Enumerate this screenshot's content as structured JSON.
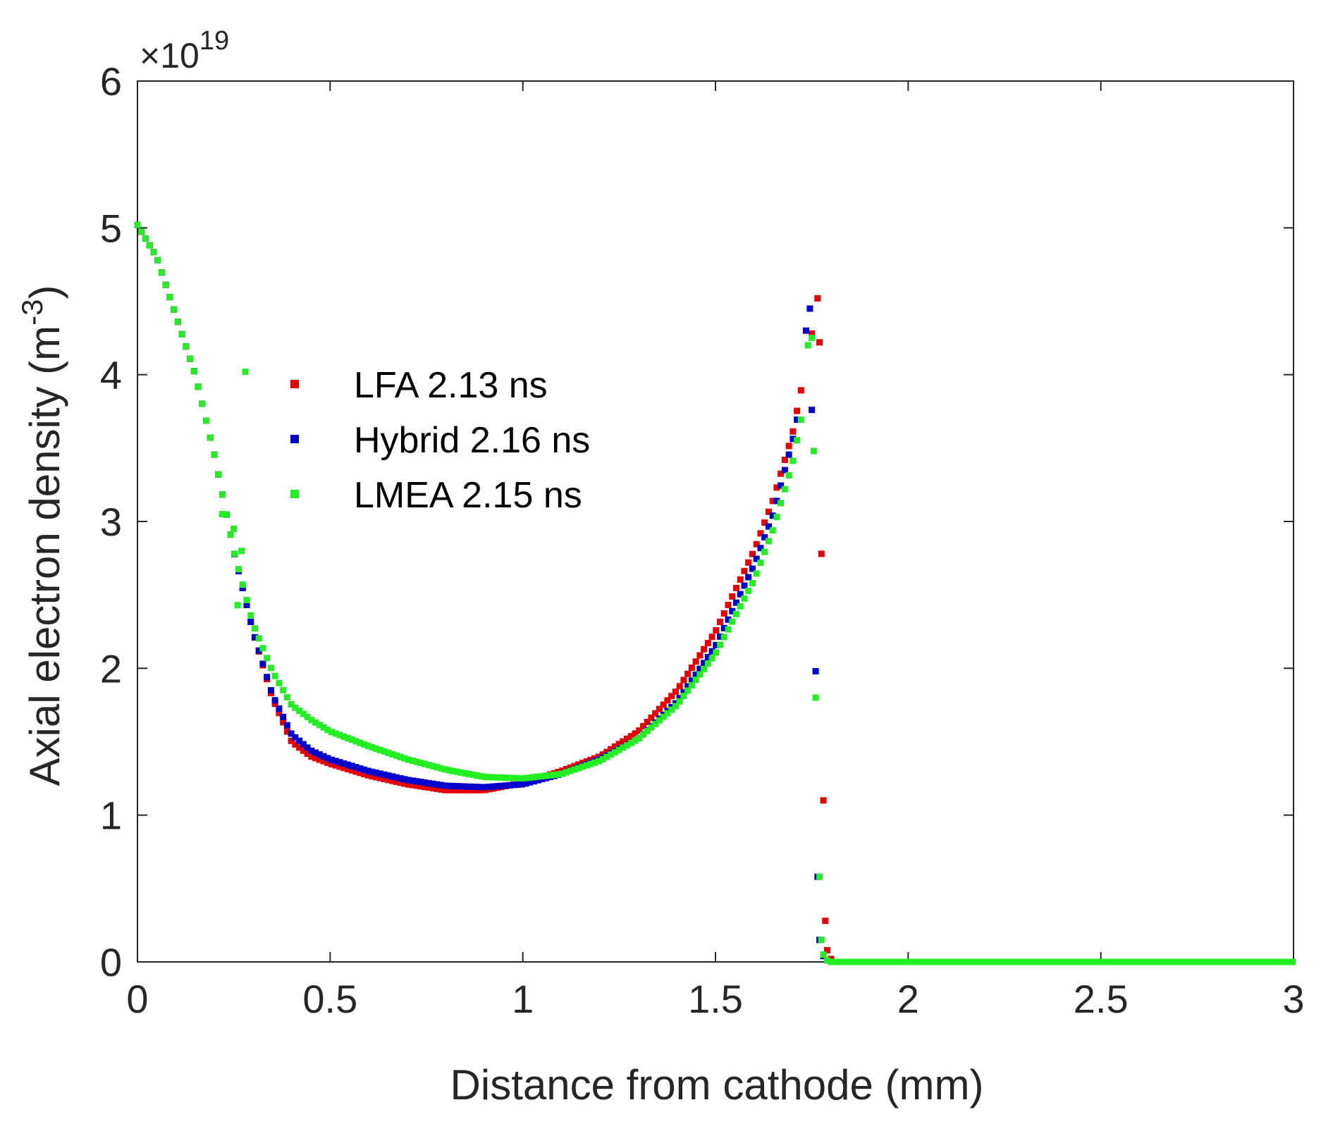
{
  "chart_data": {
    "type": "scatter",
    "title": "",
    "xlabel": "Distance from cathode (mm)",
    "ylabel_main": "Axial electron density (m",
    "ylabel_sup": "-3",
    "ylabel_close": ")",
    "y_multiplier": {
      "base": "×10",
      "exponent": "19"
    },
    "xlim": [
      0,
      3
    ],
    "ylim": [
      0,
      6
    ],
    "xticks": [
      0,
      0.5,
      1,
      1.5,
      2,
      2.5,
      3
    ],
    "xtick_labels": [
      "0",
      "0.5",
      "1",
      "1.5",
      "2",
      "2.5",
      "3"
    ],
    "yticks": [
      0,
      1,
      2,
      3,
      4,
      5,
      6
    ],
    "ytick_labels": [
      "0",
      "1",
      "2",
      "3",
      "4",
      "5",
      "6"
    ],
    "grid": false,
    "legend_position": "upper-left-inside",
    "series": [
      {
        "name": "LFA 2.13 ns",
        "color": "#e60000",
        "key": [
          [
            0,
            5.02
          ],
          [
            0.05,
            4.8
          ],
          [
            0.1,
            4.4
          ],
          [
            0.15,
            4.0
          ],
          [
            0.2,
            3.45
          ],
          [
            0.25,
            2.8
          ],
          [
            0.3,
            2.25
          ],
          [
            0.35,
            1.8
          ],
          [
            0.4,
            1.5
          ],
          [
            0.45,
            1.4
          ],
          [
            0.5,
            1.35
          ],
          [
            0.6,
            1.27
          ],
          [
            0.7,
            1.21
          ],
          [
            0.8,
            1.17
          ],
          [
            0.9,
            1.17
          ],
          [
            1.0,
            1.22
          ],
          [
            1.1,
            1.3
          ],
          [
            1.2,
            1.4
          ],
          [
            1.3,
            1.57
          ],
          [
            1.4,
            1.85
          ],
          [
            1.5,
            2.25
          ],
          [
            1.6,
            2.8
          ],
          [
            1.65,
            3.15
          ],
          [
            1.7,
            3.6
          ],
          [
            1.73,
            4.0
          ]
        ],
        "extra": [
          [
            1.75,
            4.28
          ],
          [
            1.765,
            4.52
          ],
          [
            1.77,
            4.22
          ],
          [
            1.775,
            2.78
          ],
          [
            1.78,
            1.1
          ],
          [
            1.785,
            0.28
          ],
          [
            1.79,
            0.08
          ],
          [
            1.8,
            0.02
          ],
          [
            1.81,
            0.0
          ]
        ]
      },
      {
        "name": "Hybrid 2.16 ns",
        "color": "#0000cc",
        "key": [
          [
            0,
            5.02
          ],
          [
            0.05,
            4.8
          ],
          [
            0.1,
            4.4
          ],
          [
            0.15,
            4.0
          ],
          [
            0.2,
            3.45
          ],
          [
            0.25,
            2.8
          ],
          [
            0.3,
            2.25
          ],
          [
            0.35,
            1.82
          ],
          [
            0.4,
            1.55
          ],
          [
            0.45,
            1.44
          ],
          [
            0.5,
            1.38
          ],
          [
            0.6,
            1.3
          ],
          [
            0.7,
            1.24
          ],
          [
            0.8,
            1.2
          ],
          [
            0.9,
            1.19
          ],
          [
            1.0,
            1.21
          ],
          [
            1.1,
            1.28
          ],
          [
            1.2,
            1.38
          ],
          [
            1.3,
            1.52
          ],
          [
            1.4,
            1.77
          ],
          [
            1.5,
            2.15
          ],
          [
            1.6,
            2.7
          ],
          [
            1.65,
            3.05
          ],
          [
            1.7,
            3.55
          ],
          [
            1.72,
            3.8
          ]
        ],
        "extra": [
          [
            1.735,
            4.3
          ],
          [
            1.745,
            4.45
          ],
          [
            1.75,
            3.76
          ],
          [
            1.76,
            1.98
          ],
          [
            1.765,
            0.58
          ],
          [
            1.77,
            0.15
          ],
          [
            1.78,
            0.04
          ],
          [
            1.79,
            0.01
          ],
          [
            1.8,
            0.0
          ]
        ]
      },
      {
        "name": "LMEA 2.15 ns",
        "color": "#22ee22",
        "key": [
          [
            0,
            5.02
          ],
          [
            0.05,
            4.8
          ],
          [
            0.1,
            4.4
          ],
          [
            0.15,
            4.0
          ],
          [
            0.2,
            3.45
          ],
          [
            0.25,
            2.8
          ],
          [
            0.3,
            2.3
          ],
          [
            0.35,
            1.98
          ],
          [
            0.4,
            1.75
          ],
          [
            0.45,
            1.65
          ],
          [
            0.5,
            1.57
          ],
          [
            0.6,
            1.47
          ],
          [
            0.7,
            1.38
          ],
          [
            0.8,
            1.31
          ],
          [
            0.9,
            1.26
          ],
          [
            1.0,
            1.25
          ],
          [
            1.1,
            1.28
          ],
          [
            1.2,
            1.37
          ],
          [
            1.3,
            1.52
          ],
          [
            1.4,
            1.75
          ],
          [
            1.5,
            2.1
          ],
          [
            1.6,
            2.6
          ],
          [
            1.65,
            2.95
          ],
          [
            1.7,
            3.4
          ],
          [
            1.73,
            3.8
          ]
        ],
        "extra": [
          [
            0.28,
            4.02
          ],
          [
            0.22,
            3.05
          ],
          [
            0.25,
            2.95
          ],
          [
            0.27,
            2.8
          ],
          [
            0.26,
            2.43
          ],
          [
            1.74,
            4.2
          ],
          [
            1.75,
            4.25
          ],
          [
            1.755,
            3.48
          ],
          [
            1.76,
            1.8
          ],
          [
            1.77,
            0.58
          ],
          [
            1.775,
            0.15
          ],
          [
            1.78,
            0.05
          ],
          [
            1.79,
            0.01
          ],
          [
            1.8,
            0.0
          ]
        ]
      }
    ],
    "flat_region": {
      "x_start": 1.8,
      "x_end": 3.0,
      "y": 0
    }
  }
}
